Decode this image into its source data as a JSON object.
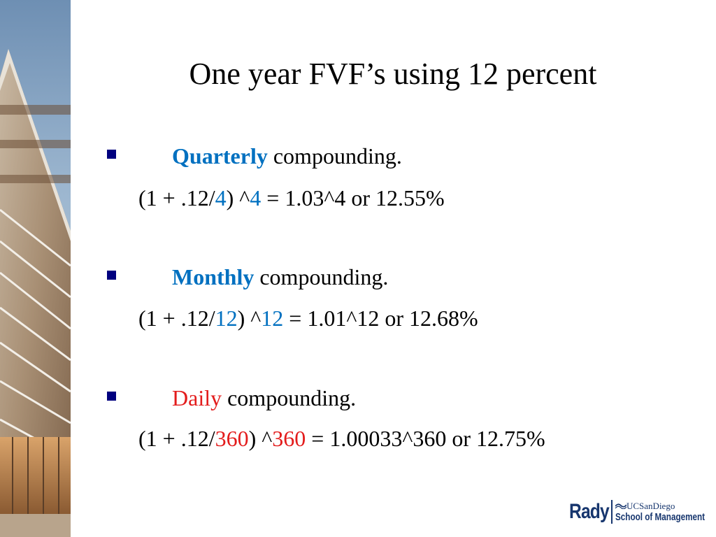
{
  "title": "One year FVF’s using 12 percent",
  "bullets": [
    {
      "keyword": "Quarterly",
      "rest": " compounding.",
      "formula": {
        "prefix": "(1 + .12/",
        "n1": "4",
        "mid": ") ^",
        "n2": "4",
        "suffix": " = 1.03^4 or 12.55%"
      }
    },
    {
      "keyword": "Monthly",
      "rest": " compounding.",
      "formula": {
        "prefix": "(1 + .12/",
        "n1": "12",
        "mid": ") ^",
        "n2": "12",
        "suffix": " = 1.01^12 or 12.68%"
      }
    },
    {
      "keyword": "Daily",
      "rest": " compounding.",
      "formula": {
        "prefix": "(1 + .12/",
        "n1": "360",
        "mid": ") ^",
        "n2": "360",
        "suffix": " = 1.00033^360 or 12.75%"
      }
    }
  ],
  "logo": {
    "name": "Rady",
    "university": "UCSanDiego",
    "school": "School of Management"
  },
  "colors": {
    "bullet_marker": "#00007f",
    "blue_keyword": "#0070c0",
    "red_keyword": "#e31c1c",
    "logo": "#17366e"
  }
}
